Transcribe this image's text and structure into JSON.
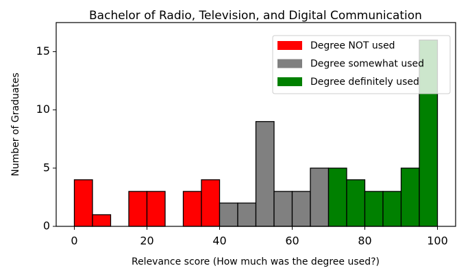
{
  "chart_data": {
    "type": "histogram",
    "title": "Bachelor of Radio, Television, and Digital Communication",
    "x_label": "Relevance score (How much was the degree used?)",
    "y_label": "Number of Graduates",
    "series": [
      {
        "name": "Degree NOT used",
        "color": "#ff0000",
        "bins": [
          0,
          5,
          10,
          15,
          20,
          25,
          30,
          35,
          40
        ],
        "values": [
          4,
          1,
          0,
          3,
          3,
          0,
          3,
          4
        ]
      },
      {
        "name": "Degree somewhat used",
        "color": "#808080",
        "bins": [
          40,
          45,
          50,
          55,
          60,
          65,
          70
        ],
        "values": [
          2,
          2,
          9,
          3,
          3,
          5
        ]
      },
      {
        "name": "Degree definitely used",
        "color": "#008000",
        "bins": [
          70,
          75,
          80,
          85,
          90,
          95,
          100
        ],
        "values": [
          5,
          4,
          3,
          3,
          5,
          16
        ]
      }
    ],
    "xlim": [
      -5,
      105
    ],
    "ylim": [
      0,
      17.5
    ],
    "xticks": [
      0,
      20,
      40,
      60,
      80,
      100
    ],
    "yticks": [
      0,
      5,
      10,
      15
    ],
    "legend": "upper right",
    "grid": false
  }
}
